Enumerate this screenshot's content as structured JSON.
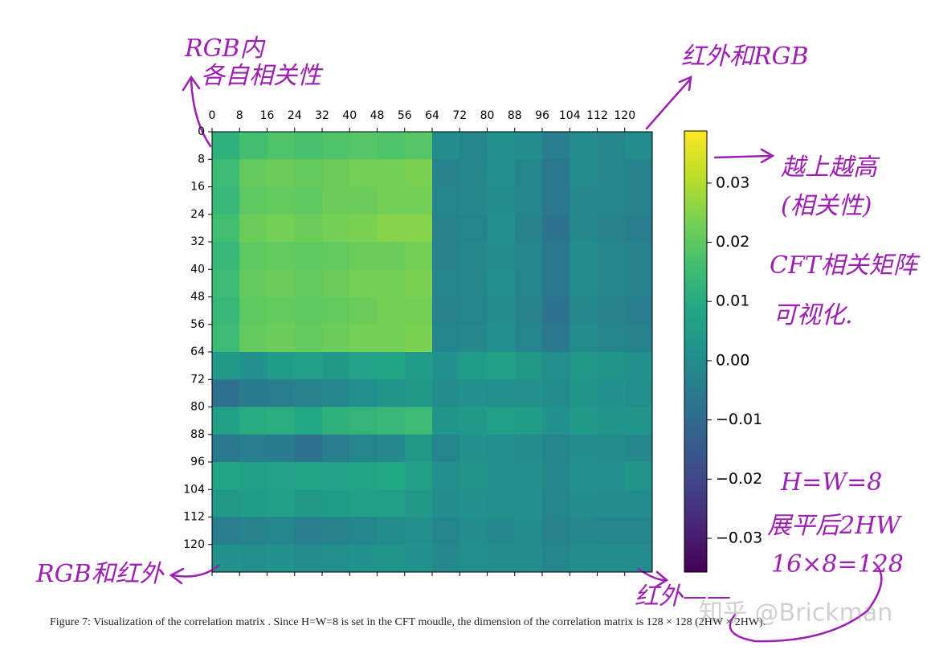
{
  "chart_data": {
    "type": "heatmap",
    "xlim": [
      0,
      128
    ],
    "ylim": [
      0,
      128
    ],
    "xticks": [
      0,
      8,
      16,
      24,
      32,
      40,
      48,
      56,
      64,
      72,
      80,
      88,
      96,
      104,
      112,
      120
    ],
    "yticks": [
      0,
      8,
      16,
      24,
      32,
      40,
      48,
      56,
      64,
      72,
      80,
      88,
      96,
      104,
      112,
      120
    ],
    "clim": [
      -0.0357,
      0.0388
    ],
    "cticks": [
      0.03,
      0.02,
      0.01,
      {
        "value": 0,
        "label": "0.00"
      },
      {
        "value": -0.01,
        "label": "−0.01"
      },
      {
        "value": -0.02,
        "label": "−0.02"
      },
      {
        "value": -0.03,
        "label": "−0.03"
      }
    ],
    "colormap": "viridis",
    "values": [
      [
        0.012,
        0.016,
        0.018,
        0.017,
        0.018,
        0.019,
        0.018,
        0.019,
        0.0,
        -0.002,
        0.002,
        0.0,
        -0.004,
        0.0,
        -0.002,
        0.0
      ],
      [
        0.015,
        0.021,
        0.022,
        0.021,
        0.022,
        0.023,
        0.023,
        0.024,
        -0.003,
        -0.001,
        0.001,
        -0.002,
        -0.006,
        0.0,
        -0.002,
        -0.003
      ],
      [
        0.014,
        0.02,
        0.021,
        0.02,
        0.022,
        0.022,
        0.023,
        0.023,
        -0.002,
        -0.001,
        0.0,
        -0.002,
        -0.006,
        -0.001,
        -0.002,
        -0.003
      ],
      [
        0.016,
        0.022,
        0.023,
        0.022,
        0.023,
        0.024,
        0.025,
        0.025,
        -0.003,
        -0.002,
        0.001,
        -0.003,
        -0.007,
        -0.001,
        -0.003,
        -0.004
      ],
      [
        0.014,
        0.02,
        0.021,
        0.02,
        0.021,
        0.022,
        0.022,
        0.023,
        -0.003,
        -0.001,
        0.0,
        -0.002,
        -0.006,
        0.0,
        -0.002,
        -0.003
      ],
      [
        0.015,
        0.021,
        0.022,
        0.021,
        0.022,
        0.023,
        0.023,
        0.024,
        -0.002,
        -0.001,
        0.001,
        -0.002,
        -0.006,
        0.0,
        -0.002,
        -0.003
      ],
      [
        0.014,
        0.02,
        0.021,
        0.02,
        0.021,
        0.022,
        0.023,
        0.023,
        -0.003,
        -0.002,
        0.0,
        -0.003,
        -0.007,
        -0.001,
        -0.003,
        -0.004
      ],
      [
        0.015,
        0.021,
        0.022,
        0.021,
        0.022,
        0.023,
        0.023,
        0.024,
        -0.002,
        -0.001,
        0.001,
        -0.002,
        -0.006,
        0.0,
        -0.002,
        -0.003
      ],
      [
        0.004,
        0.002,
        0.005,
        0.006,
        0.004,
        0.007,
        0.008,
        0.005,
        0.002,
        0.005,
        0.006,
        0.004,
        0.001,
        0.004,
        0.003,
        0.002
      ],
      [
        -0.008,
        -0.005,
        -0.004,
        -0.003,
        -0.002,
        0.001,
        0.003,
        0.004,
        0.0,
        0.002,
        0.001,
        0.002,
        0.0,
        0.003,
        0.002,
        0.001
      ],
      [
        0.006,
        0.01,
        0.011,
        0.009,
        0.012,
        0.013,
        0.014,
        0.015,
        0.003,
        0.004,
        0.006,
        0.005,
        0.002,
        0.004,
        0.003,
        0.003
      ],
      [
        -0.006,
        -0.004,
        -0.005,
        -0.007,
        -0.004,
        -0.002,
        -0.001,
        0.004,
        -0.002,
        0.002,
        0.001,
        0.0,
        -0.002,
        0.0,
        0.0,
        -0.001
      ],
      [
        0.008,
        0.006,
        0.007,
        0.008,
        0.007,
        0.008,
        0.009,
        0.006,
        0.001,
        0.003,
        0.002,
        0.001,
        -0.001,
        0.002,
        0.001,
        0.003
      ],
      [
        0.004,
        0.005,
        0.006,
        0.004,
        0.005,
        0.006,
        0.006,
        0.004,
        0.0,
        0.002,
        0.001,
        0.001,
        -0.002,
        0.0,
        0.0,
        0.0
      ],
      [
        -0.004,
        -0.003,
        -0.002,
        -0.004,
        -0.003,
        -0.002,
        0.0,
        0.001,
        -0.002,
        0.0,
        -0.001,
        0.0,
        -0.003,
        -0.001,
        -0.002,
        -0.002
      ],
      [
        0.002,
        0.001,
        0.002,
        0.0,
        0.001,
        0.002,
        0.003,
        0.002,
        -0.001,
        0.001,
        0.0,
        0.0,
        -0.002,
        0.0,
        0.0,
        0.0
      ]
    ],
    "annotations": [
      "RGB内",
      "各自相关性",
      "红外和RGB",
      "越上越高",
      "(相关性)",
      "CFT相关矩阵",
      "可视化.",
      "H=W=8",
      "展平后2HW",
      "16×8=128",
      "RGB和红外",
      "红外——"
    ],
    "caption": "Figure 7:  Visualization of the correlation matrix . Since H=W=8 is set in the CFT moudle, the dimension of the correlation matrix is 128 × 128 (2HW × 2HW).",
    "watermark": "知乎 @Brickman"
  }
}
